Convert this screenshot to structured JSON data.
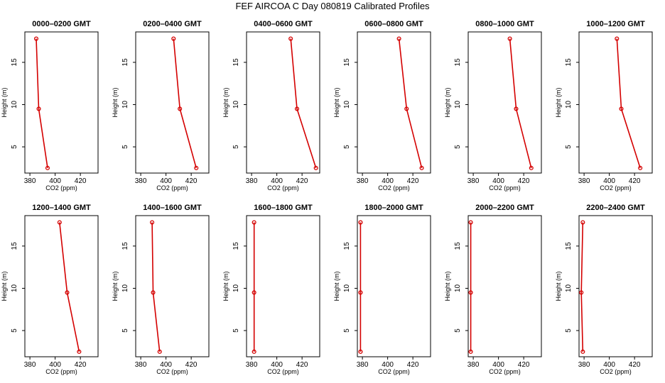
{
  "title": "FEF AIRCOA C  Day 080819  Calibrated Profiles",
  "colors": {
    "series": "#d40000",
    "axis": "#000000",
    "background": "#ffffff"
  },
  "chart_data": [
    {
      "type": "line",
      "title": "0000–0200 GMT",
      "xlabel": "CO2 (ppm)",
      "ylabel": "Height (m)",
      "xlim": [
        376,
        434
      ],
      "ylim": [
        1.9,
        18.6
      ],
      "xticks": [
        380,
        400,
        420
      ],
      "yticks": [
        5,
        10,
        15
      ],
      "grid": false,
      "x": [
        385,
        387,
        394
      ],
      "y": [
        17.8,
        9.5,
        2.5
      ]
    },
    {
      "type": "line",
      "title": "0200–0400 GMT",
      "xlabel": "CO2 (ppm)",
      "ylabel": "Height (m)",
      "xlim": [
        376,
        434
      ],
      "ylim": [
        1.9,
        18.6
      ],
      "xticks": [
        380,
        400,
        420
      ],
      "yticks": [
        5,
        10,
        15
      ],
      "grid": false,
      "x": [
        406,
        411,
        424
      ],
      "y": [
        17.8,
        9.5,
        2.5
      ]
    },
    {
      "type": "line",
      "title": "0400–0600 GMT",
      "xlabel": "CO2 (ppm)",
      "ylabel": "Height (m)",
      "xlim": [
        376,
        434
      ],
      "ylim": [
        1.9,
        18.6
      ],
      "xticks": [
        380,
        400,
        420
      ],
      "yticks": [
        5,
        10,
        15
      ],
      "grid": false,
      "x": [
        411,
        416,
        431
      ],
      "y": [
        17.8,
        9.5,
        2.5
      ]
    },
    {
      "type": "line",
      "title": "0600–0800 GMT",
      "xlabel": "CO2 (ppm)",
      "ylabel": "Height (m)",
      "xlim": [
        376,
        434
      ],
      "ylim": [
        1.9,
        18.6
      ],
      "xticks": [
        380,
        400,
        420
      ],
      "yticks": [
        5,
        10,
        15
      ],
      "grid": false,
      "x": [
        409,
        415,
        427
      ],
      "y": [
        17.8,
        9.5,
        2.5
      ]
    },
    {
      "type": "line",
      "title": "0800–1000 GMT",
      "xlabel": "CO2 (ppm)",
      "ylabel": "Height (m)",
      "xlim": [
        376,
        434
      ],
      "ylim": [
        1.9,
        18.6
      ],
      "xticks": [
        380,
        400,
        420
      ],
      "yticks": [
        5,
        10,
        15
      ],
      "grid": false,
      "x": [
        409,
        414,
        426
      ],
      "y": [
        17.8,
        9.5,
        2.5
      ]
    },
    {
      "type": "line",
      "title": "1000–1200 GMT",
      "xlabel": "CO2 (ppm)",
      "ylabel": "Height (m)",
      "xlim": [
        376,
        434
      ],
      "ylim": [
        1.9,
        18.6
      ],
      "xticks": [
        380,
        400,
        420
      ],
      "yticks": [
        5,
        10,
        15
      ],
      "grid": false,
      "x": [
        406,
        409.5,
        424.5
      ],
      "y": [
        17.8,
        9.5,
        2.5
      ]
    },
    {
      "type": "line",
      "title": "1200–1400 GMT",
      "xlabel": "CO2 (ppm)",
      "ylabel": "Height (m)",
      "xlim": [
        376,
        434
      ],
      "ylim": [
        1.9,
        18.6
      ],
      "xticks": [
        380,
        400,
        420
      ],
      "yticks": [
        5,
        10,
        15
      ],
      "grid": false,
      "x": [
        403.5,
        409.5,
        419
      ],
      "y": [
        17.8,
        9.5,
        2.5
      ]
    },
    {
      "type": "line",
      "title": "1400–1600 GMT",
      "xlabel": "CO2 (ppm)",
      "ylabel": "Height (m)",
      "xlim": [
        376,
        434
      ],
      "ylim": [
        1.9,
        18.6
      ],
      "xticks": [
        380,
        400,
        420
      ],
      "yticks": [
        5,
        10,
        15
      ],
      "grid": false,
      "x": [
        389,
        389.8,
        395
      ],
      "y": [
        17.8,
        9.5,
        2.5
      ]
    },
    {
      "type": "line",
      "title": "1600–1800 GMT",
      "xlabel": "CO2 (ppm)",
      "ylabel": "Height (m)",
      "xlim": [
        376,
        434
      ],
      "ylim": [
        1.9,
        18.6
      ],
      "xticks": [
        380,
        400,
        420
      ],
      "yticks": [
        5,
        10,
        15
      ],
      "grid": false,
      "x": [
        382,
        382,
        382
      ],
      "y": [
        17.8,
        9.5,
        2.5
      ]
    },
    {
      "type": "line",
      "title": "1800–2000 GMT",
      "xlabel": "CO2 (ppm)",
      "ylabel": "Height (m)",
      "xlim": [
        376,
        434
      ],
      "ylim": [
        1.9,
        18.6
      ],
      "xticks": [
        380,
        400,
        420
      ],
      "yticks": [
        5,
        10,
        15
      ],
      "grid": false,
      "x": [
        378.5,
        378.5,
        378.5
      ],
      "y": [
        17.8,
        9.5,
        2.5
      ]
    },
    {
      "type": "line",
      "title": "2000–2200 GMT",
      "xlabel": "CO2 (ppm)",
      "ylabel": "Height (m)",
      "xlim": [
        376,
        434
      ],
      "ylim": [
        1.9,
        18.6
      ],
      "xticks": [
        380,
        400,
        420
      ],
      "yticks": [
        5,
        10,
        15
      ],
      "grid": false,
      "x": [
        378,
        378,
        378
      ],
      "y": [
        17.8,
        9.5,
        2.5
      ]
    },
    {
      "type": "line",
      "title": "2200–2400 GMT",
      "xlabel": "CO2 (ppm)",
      "ylabel": "Height (m)",
      "xlim": [
        376,
        434
      ],
      "ylim": [
        1.9,
        18.6
      ],
      "xticks": [
        380,
        400,
        420
      ],
      "yticks": [
        5,
        10,
        15
      ],
      "grid": false,
      "x": [
        379,
        377.8,
        379
      ],
      "y": [
        17.8,
        9.5,
        2.5
      ]
    }
  ]
}
